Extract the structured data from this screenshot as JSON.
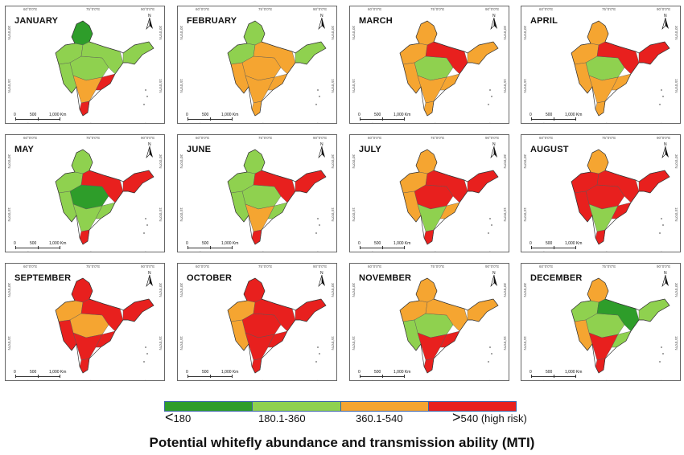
{
  "colors": {
    "low": "#2e9d2a",
    "medium_low": "#8fd14f",
    "medium_high": "#f5a531",
    "high": "#e8201e",
    "outline": "#555555",
    "legend_border": "#3a62a8"
  },
  "axis_ticks": {
    "lon": [
      "60°0'0\"E",
      "75°0'0\"E",
      "90°0'0\"E"
    ],
    "lat": [
      "30°0'0\"N",
      "15°0'0\"N"
    ]
  },
  "scale_bar": {
    "zero": "0",
    "mid": "500",
    "max": "1,000 Km"
  },
  "north_icon": "north-arrow-icon",
  "months": [
    {
      "name": "JANUARY",
      "risk": {
        "north": "g",
        "northwest": "l",
        "central": "l",
        "east": "l",
        "northeast": "l",
        "west": "l",
        "south": "o",
        "south_tip": "r",
        "east_coast": "r"
      }
    },
    {
      "name": "FEBRUARY",
      "risk": {
        "north": "l",
        "northwest": "l",
        "central": "o",
        "east": "o",
        "northeast": "l",
        "west": "o",
        "south": "o",
        "south_tip": "o",
        "east_coast": "o"
      }
    },
    {
      "name": "MARCH",
      "risk": {
        "north": "o",
        "northwest": "o",
        "central": "l",
        "east": "r",
        "northeast": "o",
        "west": "o",
        "south": "o",
        "south_tip": "o",
        "east_coast": "o"
      }
    },
    {
      "name": "APRIL",
      "risk": {
        "north": "o",
        "northwest": "o",
        "central": "l",
        "east": "r",
        "northeast": "r",
        "west": "o",
        "south": "o",
        "south_tip": "o",
        "east_coast": "o"
      }
    },
    {
      "name": "MAY",
      "risk": {
        "north": "l",
        "northwest": "l",
        "central": "g",
        "east": "r",
        "northeast": "r",
        "west": "l",
        "south": "l",
        "south_tip": "r",
        "east_coast": "l"
      }
    },
    {
      "name": "JUNE",
      "risk": {
        "north": "l",
        "northwest": "l",
        "central": "l",
        "east": "r",
        "northeast": "r",
        "west": "l",
        "south": "o",
        "south_tip": "r",
        "east_coast": "l"
      }
    },
    {
      "name": "JULY",
      "risk": {
        "north": "o",
        "northwest": "o",
        "central": "r",
        "east": "r",
        "northeast": "r",
        "west": "o",
        "south": "l",
        "south_tip": "r",
        "east_coast": "o"
      }
    },
    {
      "name": "AUGUST",
      "risk": {
        "north": "o",
        "northwest": "r",
        "central": "r",
        "east": "r",
        "northeast": "r",
        "west": "r",
        "south": "l",
        "south_tip": "r",
        "east_coast": "r"
      }
    },
    {
      "name": "SEPTEMBER",
      "risk": {
        "north": "r",
        "northwest": "o",
        "central": "o",
        "east": "r",
        "northeast": "r",
        "west": "r",
        "south": "r",
        "south_tip": "r",
        "east_coast": "r"
      }
    },
    {
      "name": "OCTOBER",
      "risk": {
        "north": "r",
        "northwest": "o",
        "central": "r",
        "east": "r",
        "northeast": "r",
        "west": "o",
        "south": "r",
        "south_tip": "r",
        "east_coast": "r"
      }
    },
    {
      "name": "NOVEMBER",
      "risk": {
        "north": "o",
        "northwest": "o",
        "central": "l",
        "east": "o",
        "northeast": "o",
        "west": "l",
        "south": "r",
        "south_tip": "r",
        "east_coast": "r"
      }
    },
    {
      "name": "DECEMBER",
      "risk": {
        "north": "o",
        "northwest": "l",
        "central": "l",
        "east": "g",
        "northeast": "l",
        "west": "o",
        "south": "r",
        "south_tip": "r",
        "east_coast": "l"
      }
    }
  ],
  "legend": {
    "items": [
      {
        "symbol": "<",
        "text": "180",
        "color_key": "low"
      },
      {
        "symbol": "",
        "text": "180.1-360",
        "color_key": "medium_low"
      },
      {
        "symbol": "",
        "text": "360.1-540",
        "color_key": "medium_high"
      },
      {
        "symbol": ">",
        "text": "540 (high risk)",
        "color_key": "high"
      }
    ]
  },
  "title": "Potential whitefly abundance and transmission ability (MTI)"
}
